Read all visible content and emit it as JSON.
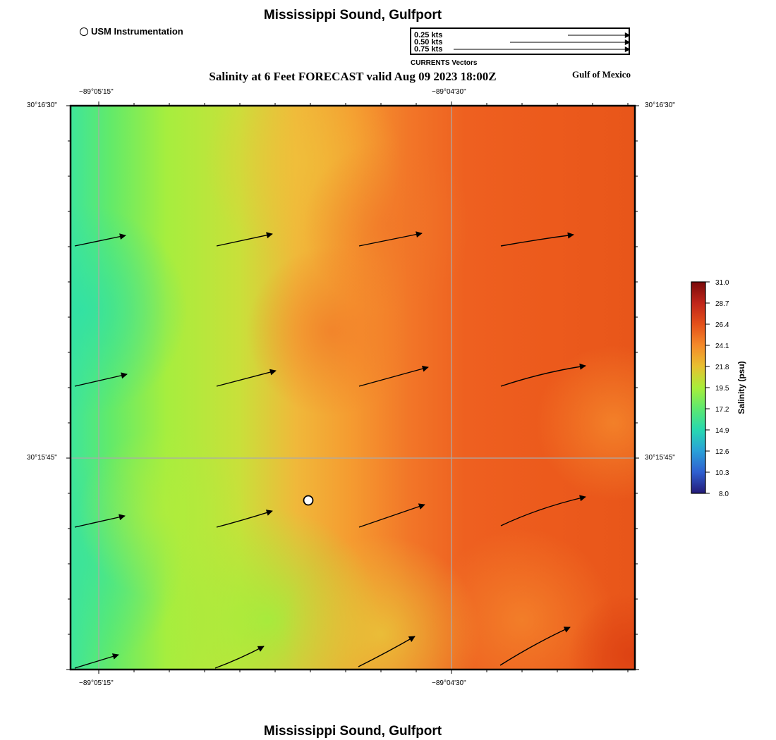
{
  "title": "Mississippi Sound, Gulfport",
  "subtitle": "Salinity at 6 Feet FORECAST valid Aug 09 2023 18:00Z",
  "region_label": "Gulf of Mexico",
  "instrument_legend": {
    "label": "USM Instrumentation"
  },
  "vector_legend": {
    "caption": "CURRENTS Vectors",
    "entries": [
      "0.25 kts",
      "0.50 kts",
      "0.75 kts"
    ]
  },
  "axes": {
    "longitude_ticks": [
      "−89°05'15\"",
      "−89°04'30\""
    ],
    "latitude_ticks": [
      "30°16'30\"",
      "30°15'45\""
    ]
  },
  "colorbar": {
    "title": "Salinity (psu)",
    "tick_labels": [
      "31.0",
      "28.7",
      "26.4",
      "24.1",
      "21.8",
      "19.5",
      "17.2",
      "14.9",
      "12.6",
      "10.3",
      "8.0"
    ],
    "colors": [
      "#7a0a0a",
      "#c0251a",
      "#e4501a",
      "#f58a2a",
      "#e8c030",
      "#a8ee3a",
      "#5ce870",
      "#27d8b0",
      "#2aa0d8",
      "#2f5fd0",
      "#241a78"
    ]
  },
  "colors": {
    "frame": "#000000",
    "gridline": "#aaaaaa",
    "instrument_marker": "#ffffff"
  }
}
